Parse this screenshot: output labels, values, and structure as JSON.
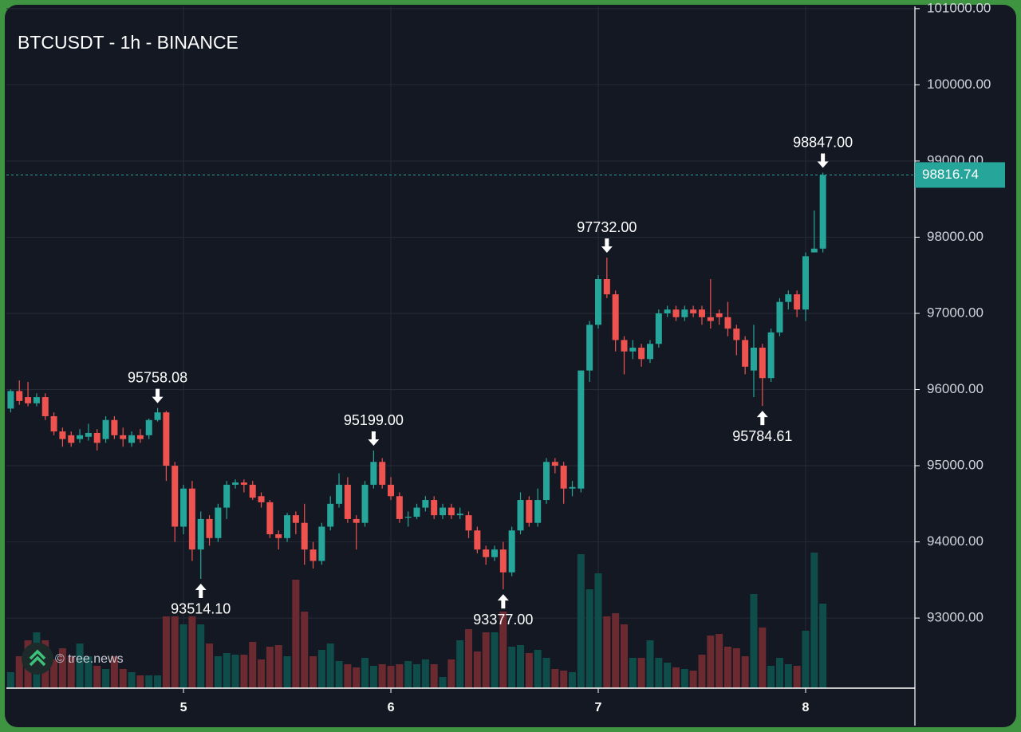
{
  "chart_data": {
    "type": "candlestick",
    "title": "BTCUSDT - 1h - BINANCE",
    "watermark": "© tree.news",
    "up_color": "#26a69a",
    "down_color": "#ef5350",
    "volume_up_color": "#0f4d4b",
    "volume_down_color": "#6b2a30",
    "grid": true,
    "xlim": [
      3.5,
      108.65
    ],
    "xticks": [
      {
        "value": 24,
        "label": "5"
      },
      {
        "value": 48,
        "label": "6"
      },
      {
        "value": 72,
        "label": "7"
      },
      {
        "value": 96,
        "label": "8"
      }
    ],
    "ylim": [
      92080,
      101030
    ],
    "yticks": [
      {
        "value": 93000,
        "label": "93000.00"
      },
      {
        "value": 94000,
        "label": "94000.00"
      },
      {
        "value": 95000,
        "label": "95000.00"
      },
      {
        "value": 96000,
        "label": "96000.00"
      },
      {
        "value": 97000,
        "label": "97000.00"
      },
      {
        "value": 98000,
        "label": "98000.00"
      },
      {
        "value": 99000,
        "label": "99000.00"
      },
      {
        "value": 100000,
        "label": "100000.00"
      },
      {
        "value": 101000,
        "label": "101000.00"
      }
    ],
    "y2lim": [
      0,
      100
    ],
    "last_price": {
      "value": 98816.74,
      "label": "98816.74"
    },
    "x": [
      4,
      5,
      6,
      7,
      8,
      9,
      10,
      11,
      12,
      13,
      14,
      15,
      16,
      17,
      18,
      19,
      20,
      21,
      22,
      23,
      24,
      25,
      26,
      27,
      28,
      29,
      30,
      31,
      32,
      33,
      34,
      35,
      36,
      37,
      38,
      39,
      40,
      41,
      42,
      43,
      44,
      45,
      46,
      47,
      48,
      49,
      50,
      51,
      52,
      53,
      54,
      55,
      56,
      57,
      58,
      59,
      60,
      61,
      62,
      63,
      64,
      65,
      66,
      67,
      68,
      69,
      70,
      71,
      72,
      73,
      74,
      75,
      76,
      77,
      78,
      79,
      80,
      81,
      82,
      83,
      84,
      85,
      86,
      87,
      88,
      89,
      90,
      91,
      92,
      93,
      94,
      95,
      96,
      97,
      98
    ],
    "open": [
      95750,
      95980,
      95900,
      95820,
      95900,
      95650,
      95450,
      95400,
      95350,
      95380,
      95430,
      95350,
      95600,
      95400,
      95300,
      95400,
      95400,
      95600,
      95700,
      95000,
      94200,
      94700,
      93900,
      94300,
      94050,
      94450,
      94750,
      94780,
      94750,
      94600,
      94520,
      94100,
      94050,
      94350,
      94250,
      93900,
      93750,
      94200,
      94500,
      94750,
      94300,
      94250,
      94750,
      95050,
      94750,
      94600,
      94320,
      94330,
      94450,
      94550,
      94350,
      94450,
      94350,
      94350,
      94150,
      93900,
      93800,
      93900,
      93600,
      94150,
      94550,
      94250,
      94550,
      95050,
      95000,
      94700,
      94700,
      96250,
      96850,
      97450,
      97250,
      96650,
      96500,
      96550,
      96400,
      96600,
      97000,
      97050,
      96950,
      97050,
      97050,
      96950,
      97000,
      96950,
      96800,
      96650,
      96250,
      96550,
      96150,
      96750,
      97150,
      97250,
      97050,
      97800,
      97850
    ],
    "high": [
      96000,
      96120,
      96100,
      95950,
      95950,
      95700,
      95500,
      95450,
      95480,
      95550,
      95480,
      95650,
      95650,
      95500,
      95450,
      95480,
      95620,
      95758.08,
      95720,
      95050,
      94750,
      94800,
      94400,
      94350,
      94500,
      94800,
      94820,
      94820,
      94800,
      94650,
      94550,
      94150,
      94380,
      94400,
      94500,
      94000,
      94250,
      94600,
      94900,
      94850,
      94350,
      94800,
      95199,
      95100,
      94850,
      94650,
      94400,
      94500,
      94600,
      94600,
      94500,
      94500,
      94450,
      94400,
      94200,
      93950,
      93950,
      94000,
      94200,
      94650,
      94600,
      94700,
      95100,
      95100,
      95050,
      94800,
      96250,
      96900,
      97500,
      97732,
      97300,
      96700,
      96650,
      96600,
      96650,
      97050,
      97100,
      97100,
      97100,
      97100,
      97100,
      97450,
      97050,
      97150,
      96850,
      96700,
      96850,
      96600,
      96800,
      97200,
      97300,
      97300,
      97800,
      98350,
      98847
    ],
    "low": [
      95700,
      95800,
      95780,
      95780,
      95600,
      95400,
      95250,
      95250,
      95300,
      95330,
      95200,
      95300,
      95350,
      95250,
      95250,
      95300,
      95350,
      95580,
      94800,
      94000,
      94100,
      93750,
      93514.1,
      93950,
      94000,
      94300,
      94700,
      94650,
      94550,
      94450,
      94050,
      93900,
      94000,
      94100,
      93700,
      93650,
      93700,
      94150,
      94450,
      94250,
      93900,
      94200,
      94700,
      94700,
      94550,
      94250,
      94200,
      94300,
      94400,
      94300,
      94300,
      94300,
      94300,
      94050,
      93850,
      93700,
      93750,
      93377,
      93550,
      94100,
      94200,
      94200,
      94500,
      94900,
      94500,
      94600,
      94650,
      96100,
      96800,
      97200,
      96500,
      96200,
      96400,
      96300,
      96350,
      96550,
      96950,
      96900,
      96900,
      96950,
      96850,
      96800,
      96850,
      96700,
      96450,
      96200,
      95900,
      95784.61,
      96100,
      96700,
      97050,
      96950,
      96900,
      97800,
      97800
    ],
    "close": [
      95980,
      95850,
      95820,
      95900,
      95650,
      95450,
      95350,
      95300,
      95400,
      95430,
      95300,
      95600,
      95400,
      95350,
      95400,
      95350,
      95600,
      95700,
      95000,
      94200,
      94700,
      93900,
      94300,
      94050,
      94450,
      94750,
      94780,
      94750,
      94580,
      94520,
      94100,
      94050,
      94350,
      94250,
      93900,
      93750,
      94200,
      94500,
      94750,
      94300,
      94250,
      94750,
      95050,
      94750,
      94600,
      94300,
      94330,
      94450,
      94550,
      94350,
      94450,
      94350,
      94370,
      94150,
      93900,
      93800,
      93900,
      93600,
      94150,
      94550,
      94250,
      94550,
      95050,
      95000,
      94700,
      94720,
      96250,
      96850,
      97450,
      97250,
      96650,
      96500,
      96550,
      96400,
      96600,
      97000,
      97050,
      96950,
      97050,
      97000,
      96950,
      96900,
      96950,
      96800,
      96650,
      96300,
      96550,
      96150,
      96750,
      97150,
      97250,
      97050,
      97750,
      97850,
      98816.74
    ],
    "volume": [
      10,
      20,
      30,
      35,
      30,
      18,
      25,
      20,
      28,
      20,
      14,
      12,
      20,
      12,
      10,
      8,
      8,
      8,
      45,
      45,
      40,
      45,
      40,
      28,
      20,
      22,
      21,
      21,
      29,
      18,
      26,
      27,
      20,
      68,
      48,
      20,
      24,
      28,
      17,
      15,
      13,
      19,
      14,
      15,
      14,
      15,
      17,
      15,
      18,
      15,
      7,
      18,
      30,
      37,
      23,
      35,
      35,
      48,
      26,
      27,
      22,
      24,
      19,
      12,
      11,
      10,
      84,
      62,
      72,
      45,
      47,
      40,
      19,
      19,
      30,
      19,
      16,
      13,
      12,
      11,
      21,
      33,
      34,
      26,
      25,
      20,
      59,
      38,
      14,
      19,
      15,
      14,
      36,
      85,
      53
    ],
    "annotations": [
      {
        "x": 21,
        "value": 95758.08,
        "label": "95758.08",
        "dir": "down"
      },
      {
        "x": 26,
        "value": 93514.1,
        "label": "93514.10",
        "dir": "up"
      },
      {
        "x": 46,
        "value": 95199,
        "label": "95199.00",
        "dir": "down"
      },
      {
        "x": 61,
        "value": 93377,
        "label": "93377.00",
        "dir": "up"
      },
      {
        "x": 73,
        "value": 97732,
        "label": "97732.00",
        "dir": "down"
      },
      {
        "x": 91,
        "value": 95784.61,
        "label": "95784.61",
        "dir": "up"
      },
      {
        "x": 98,
        "value": 98847,
        "label": "98847.00",
        "dir": "down"
      }
    ]
  }
}
